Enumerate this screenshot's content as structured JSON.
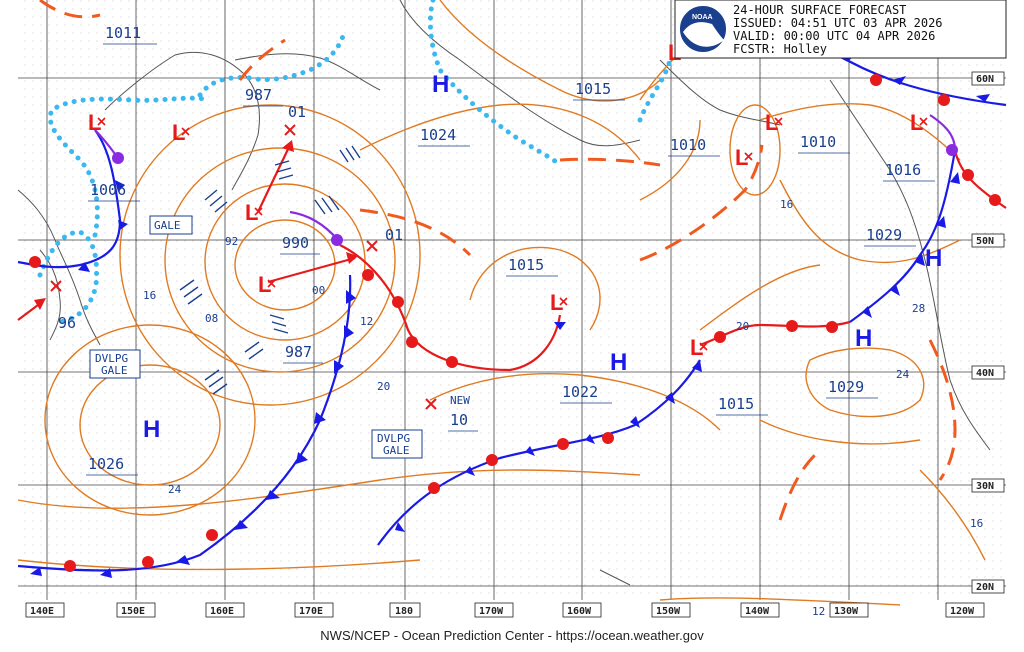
{
  "header": {
    "line1": "24-HOUR SURFACE FORECAST",
    "line2": "ISSUED: 04:51 UTC 03 APR 2026",
    "line3": "VALID:  00:00 UTC 04 APR 2026",
    "line4": "FCSTR:  Holley",
    "logo_text": "NOAA"
  },
  "footer": {
    "credit": "NWS/NCEP - Ocean Prediction Center - https://ocean.weather.gov"
  },
  "lon_labels": [
    "140E",
    "150E",
    "160E",
    "170E",
    "180",
    "170W",
    "160W",
    "150W",
    "140W",
    "130W",
    "120W"
  ],
  "lat_labels": [
    "60N",
    "50N",
    "40N",
    "30N",
    "20N"
  ],
  "pressure_boxes": [
    "1011",
    "987",
    "01",
    "1024",
    "1015",
    "1010",
    "1010",
    "1016",
    "1006",
    "990",
    "01",
    "1015",
    "1029",
    "96",
    "987",
    "1022",
    "1015",
    "1029",
    "NEW",
    "10",
    "1026"
  ],
  "contour_labels": [
    "92",
    "00",
    "08",
    "16",
    "12",
    "20",
    "24",
    "16",
    "28",
    "24",
    "16",
    "12"
  ],
  "warnings": [
    "GALE",
    "DVLPG",
    "GALE",
    "DVLPG",
    "GALE"
  ],
  "high_symbol": "H",
  "low_symbol": "L",
  "colors": {
    "isobar": "#e07b22",
    "cold_front": "#1a1ae6",
    "warm_front": "#e61a1a",
    "occluded": "#8a2be2",
    "trough": "#f05a1e",
    "ridge": "#3ab8f0",
    "grid": "#444444",
    "label_text": "#1a3f8f"
  }
}
